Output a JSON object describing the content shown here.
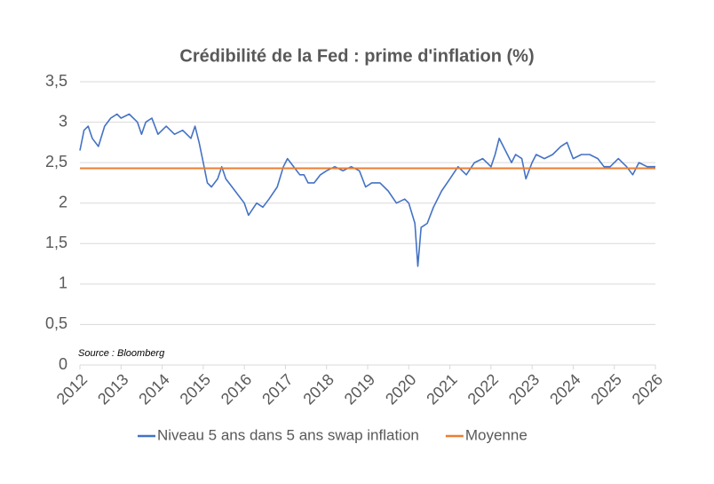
{
  "chart_data": {
    "type": "line",
    "title": "Crédibilité de la Fed : prime d'inflation (%)",
    "annotation": "Source : Bloomberg",
    "xlim": [
      2012,
      2026
    ],
    "xticks": [
      2012,
      2013,
      2014,
      2015,
      2016,
      2017,
      2018,
      2019,
      2020,
      2021,
      2022,
      2023,
      2024,
      2025,
      2026
    ],
    "ylim": [
      0,
      3.5
    ],
    "yticks": [
      0,
      {
        "value": 0.5,
        "label": "0,5"
      },
      1,
      {
        "value": 1.5,
        "label": "1,5"
      },
      2,
      {
        "value": 2.5,
        "label": "2,5"
      },
      3,
      {
        "value": 3.5,
        "label": "3,5"
      }
    ],
    "grid": true,
    "legend": "bottom",
    "series": [
      {
        "name": "Niveau 5 ans dans 5 ans swap inflation",
        "color": "#4472c4",
        "x": [
          2012.0,
          2012.1,
          2012.2,
          2012.3,
          2012.45,
          2012.6,
          2012.75,
          2012.9,
          2013.0,
          2013.2,
          2013.4,
          2013.5,
          2013.6,
          2013.75,
          2013.9,
          2014.1,
          2014.3,
          2014.5,
          2014.7,
          2014.8,
          2014.9,
          2015.0,
          2015.1,
          2015.2,
          2015.35,
          2015.45,
          2015.55,
          2015.7,
          2015.85,
          2016.0,
          2016.1,
          2016.3,
          2016.45,
          2016.6,
          2016.8,
          2016.95,
          2017.05,
          2017.2,
          2017.35,
          2017.45,
          2017.55,
          2017.7,
          2017.85,
          2018.0,
          2018.2,
          2018.4,
          2018.6,
          2018.8,
          2018.95,
          2019.1,
          2019.3,
          2019.5,
          2019.7,
          2019.9,
          2020.0,
          2020.15,
          2020.22,
          2020.3,
          2020.45,
          2020.6,
          2020.8,
          2021.0,
          2021.2,
          2021.4,
          2021.6,
          2021.8,
          2022.0,
          2022.1,
          2022.2,
          2022.35,
          2022.5,
          2022.6,
          2022.75,
          2022.85,
          2023.0,
          2023.1,
          2023.3,
          2023.5,
          2023.7,
          2023.85,
          2024.0,
          2024.2,
          2024.4,
          2024.6,
          2024.75,
          2024.9,
          2025.1,
          2025.3,
          2025.45,
          2025.6,
          2025.8,
          2026.0
        ],
        "values": [
          2.65,
          2.9,
          2.95,
          2.8,
          2.7,
          2.95,
          3.05,
          3.1,
          3.05,
          3.1,
          3.0,
          2.85,
          3.0,
          3.05,
          2.85,
          2.95,
          2.85,
          2.9,
          2.8,
          2.95,
          2.75,
          2.5,
          2.25,
          2.2,
          2.3,
          2.45,
          2.3,
          2.2,
          2.1,
          2.0,
          1.85,
          2.0,
          1.95,
          2.05,
          2.2,
          2.45,
          2.55,
          2.45,
          2.35,
          2.35,
          2.25,
          2.25,
          2.35,
          2.4,
          2.45,
          2.4,
          2.45,
          2.4,
          2.2,
          2.25,
          2.25,
          2.15,
          2.0,
          2.05,
          2.0,
          1.75,
          1.22,
          1.7,
          1.75,
          1.95,
          2.15,
          2.3,
          2.45,
          2.35,
          2.5,
          2.55,
          2.45,
          2.6,
          2.8,
          2.65,
          2.5,
          2.6,
          2.55,
          2.3,
          2.5,
          2.6,
          2.55,
          2.6,
          2.7,
          2.75,
          2.55,
          2.6,
          2.6,
          2.55,
          2.45,
          2.45,
          2.55,
          2.45,
          2.35,
          2.5,
          2.45,
          2.45
        ]
      },
      {
        "name": "Moyenne",
        "color": "#ed7d31",
        "x": [
          2012,
          2026
        ],
        "values": [
          2.43,
          2.43
        ]
      }
    ]
  }
}
